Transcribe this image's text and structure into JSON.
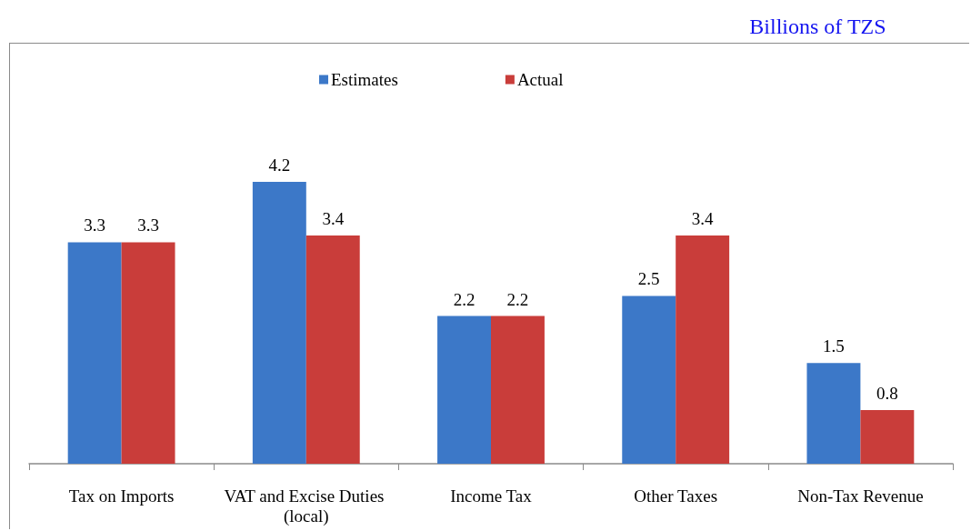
{
  "chart_data": {
    "type": "bar",
    "title": "Billions of TZS",
    "categories": [
      "Tax on Imports",
      "VAT and Excise Duties (local)",
      "Income Tax",
      "Other Taxes",
      "Non-Tax Revenue"
    ],
    "series": [
      {
        "name": "Estimates",
        "color": "#3c78c8",
        "values": [
          3.3,
          4.2,
          2.2,
          2.5,
          1.5
        ]
      },
      {
        "name": "Actual",
        "color": "#c93d3a",
        "values": [
          3.3,
          3.4,
          2.2,
          3.4,
          0.8
        ]
      }
    ],
    "data_labels": true,
    "legend": "top"
  }
}
